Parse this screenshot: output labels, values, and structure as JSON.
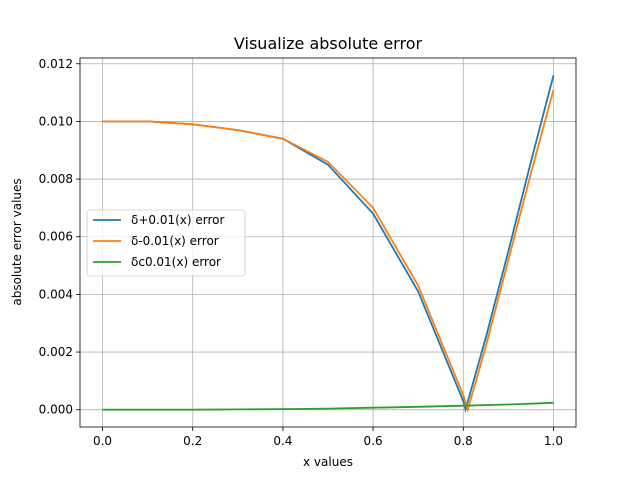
{
  "chart_data": {
    "type": "line",
    "title": "Visualize absolute error",
    "xlabel": "x values",
    "ylabel": "absolute error values",
    "xlim": [
      -0.05,
      1.05
    ],
    "ylim": [
      -0.0006,
      0.0122
    ],
    "grid": true,
    "legend_position": "center-left",
    "x_ticks": [
      0.0,
      0.2,
      0.4,
      0.6,
      0.8,
      1.0
    ],
    "x_tick_labels": [
      "0.0",
      "0.2",
      "0.4",
      "0.6",
      "0.8",
      "1.0"
    ],
    "y_ticks": [
      0.0,
      0.002,
      0.004,
      0.006,
      0.008,
      0.01,
      0.012
    ],
    "y_tick_labels": [
      "0.000",
      "0.002",
      "0.004",
      "0.006",
      "0.008",
      "0.010",
      "0.012"
    ],
    "series": [
      {
        "name": "δ+0.01(x) error",
        "color": "#1f77b4",
        "x": [
          0.0,
          0.1,
          0.2,
          0.3,
          0.4,
          0.5,
          0.6,
          0.7,
          0.75,
          0.8,
          0.805,
          0.85,
          0.9,
          0.95,
          1.0
        ],
        "y": [
          0.01,
          0.01,
          0.0099,
          0.0097,
          0.0094,
          0.0085,
          0.0068,
          0.0041,
          0.0022,
          0.0003,
          0.0,
          0.0025,
          0.0055,
          0.0086,
          0.0116
        ]
      },
      {
        "name": "δ-0.01(x) error",
        "color": "#ff7f0e",
        "x": [
          0.0,
          0.1,
          0.2,
          0.3,
          0.4,
          0.5,
          0.6,
          0.7,
          0.75,
          0.8,
          0.81,
          0.85,
          0.9,
          0.95,
          1.0
        ],
        "y": [
          0.01,
          0.01,
          0.0099,
          0.0097,
          0.0094,
          0.0086,
          0.007,
          0.0043,
          0.0024,
          0.0005,
          0.0,
          0.0022,
          0.0052,
          0.0082,
          0.0111
        ]
      },
      {
        "name": "δc0.01(x) error",
        "color": "#2ca02c",
        "x": [
          0.0,
          0.1,
          0.2,
          0.3,
          0.4,
          0.5,
          0.6,
          0.7,
          0.8,
          0.9,
          1.0
        ],
        "y": [
          0.0,
          0.0,
          0.0,
          1e-05,
          2e-05,
          4e-05,
          7e-05,
          0.0001,
          0.00014,
          0.00018,
          0.00024
        ]
      }
    ]
  }
}
